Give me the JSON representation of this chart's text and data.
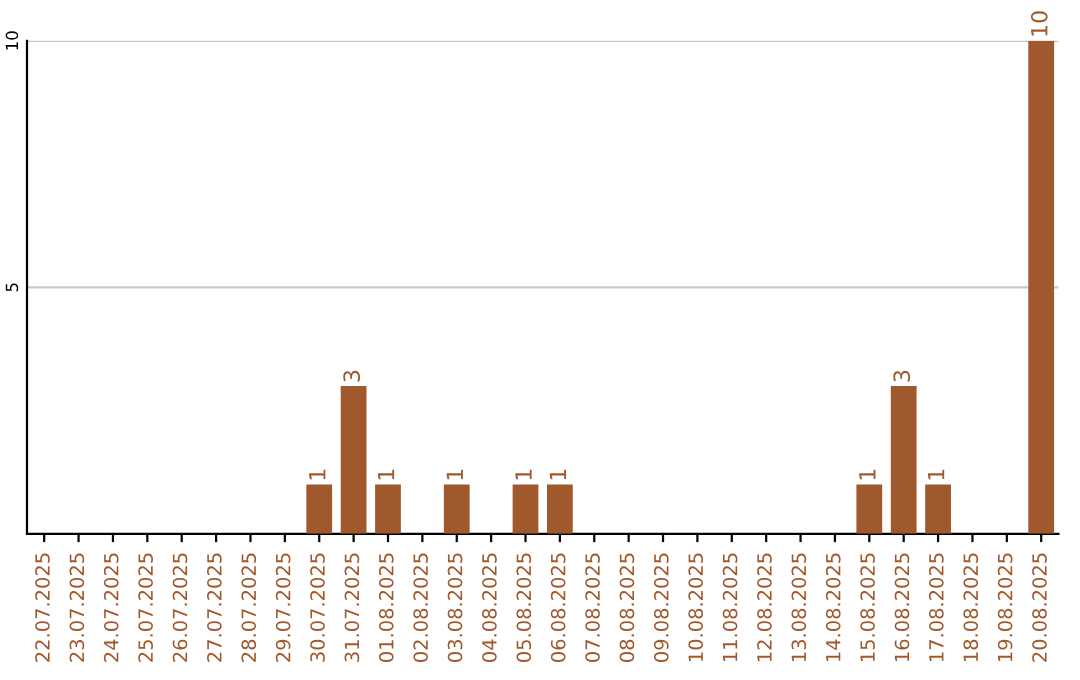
{
  "chart_data": {
    "type": "bar",
    "categories": [
      "22.07.2025",
      "23.07.2025",
      "24.07.2025",
      "25.07.2025",
      "26.07.2025",
      "27.07.2025",
      "28.07.2025",
      "29.07.2025",
      "30.07.2025",
      "31.07.2025",
      "01.08.2025",
      "02.08.2025",
      "03.08.2025",
      "04.08.2025",
      "05.08.2025",
      "06.08.2025",
      "07.08.2025",
      "08.08.2025",
      "09.08.2025",
      "10.08.2025",
      "11.08.2025",
      "12.08.2025",
      "13.08.2025",
      "14.08.2025",
      "15.08.2025",
      "16.08.2025",
      "17.08.2025",
      "18.08.2025",
      "19.08.2025",
      "20.08.2025"
    ],
    "values": [
      0,
      0,
      0,
      0,
      0,
      0,
      0,
      0,
      1,
      3,
      1,
      0,
      1,
      0,
      1,
      1,
      0,
      0,
      0,
      0,
      0,
      0,
      0,
      0,
      1,
      3,
      1,
      0,
      0,
      10
    ],
    "value_labels": [
      null,
      null,
      null,
      null,
      null,
      null,
      null,
      null,
      "1",
      "3",
      "1",
      null,
      "1",
      null,
      "1",
      "1",
      null,
      null,
      null,
      null,
      null,
      null,
      null,
      null,
      "1",
      "3",
      "1",
      null,
      null,
      "10"
    ],
    "color": "#a0592d",
    "ylim": [
      0,
      10
    ],
    "yticks": [
      5,
      10
    ],
    "grid": "y",
    "legend": false
  }
}
